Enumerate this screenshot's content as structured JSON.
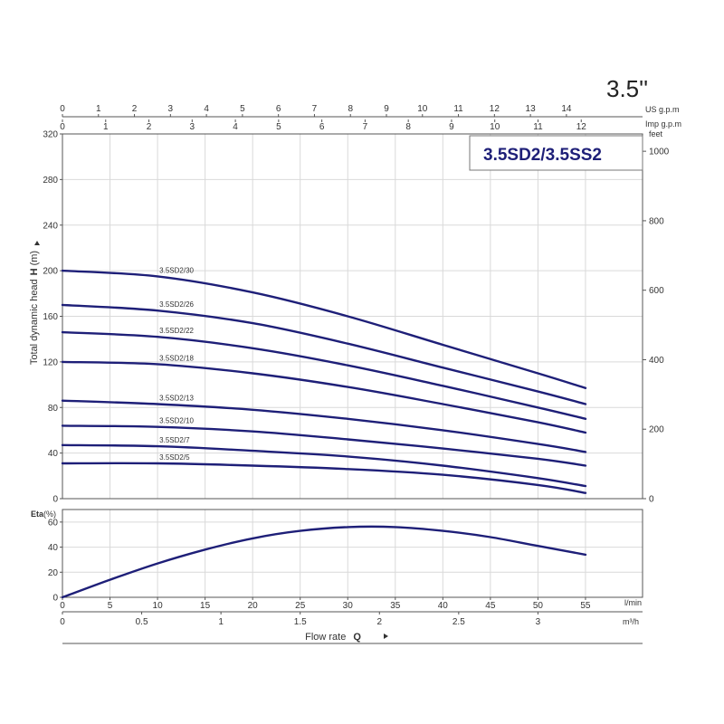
{
  "chart_data": {
    "type": "line",
    "size_label": "3.5''",
    "model_title": "3.5SD2/3.5SS2",
    "x_primary": {
      "label": "Flow rate",
      "symbol": "Q",
      "unit": "l/min",
      "range": [
        0,
        61
      ],
      "ticks": [
        "0",
        "5",
        "10",
        "15",
        "20",
        "25",
        "30",
        "35",
        "40",
        "45",
        "50",
        "55"
      ]
    },
    "x_m3h": {
      "unit": "m³/h",
      "ticks": [
        "0",
        "0.5",
        "1",
        "1.5",
        "2",
        "2.5",
        "3"
      ]
    },
    "x_us_gpm": {
      "unit": "US g.p.m",
      "ticks": [
        "0",
        "1",
        "2",
        "3",
        "4",
        "5",
        "6",
        "7",
        "8",
        "9",
        "10",
        "11",
        "12",
        "13",
        "14"
      ]
    },
    "x_imp_gpm": {
      "unit": "Imp g.p.m",
      "ticks": [
        "0",
        "1",
        "2",
        "3",
        "4",
        "5",
        "6",
        "7",
        "8",
        "9",
        "10",
        "11",
        "12"
      ]
    },
    "head": {
      "ylabel_prefix": "Total dynamic head",
      "ylabel_symbol": "H",
      "ylabel_unit": "(m)",
      "ylim": [
        0,
        320
      ],
      "ticks": [
        "0",
        "40",
        "80",
        "120",
        "160",
        "200",
        "240",
        "280",
        "320"
      ],
      "feet_unit": "feet",
      "feet_ticks": [
        "0",
        "200",
        "400",
        "600",
        "800",
        "1000"
      ],
      "series": [
        {
          "name": "3.5SD2/30",
          "x": [
            0,
            10,
            20,
            30,
            40,
            50,
            55
          ],
          "values": [
            200,
            195,
            181,
            160,
            135,
            110,
            97
          ]
        },
        {
          "name": "3.5SD2/26",
          "x": [
            0,
            10,
            20,
            30,
            40,
            50,
            55
          ],
          "values": [
            170,
            165,
            154,
            136,
            115,
            94,
            83
          ]
        },
        {
          "name": "3.5SD2/22",
          "x": [
            0,
            10,
            20,
            30,
            40,
            50,
            55
          ],
          "values": [
            146,
            142,
            132,
            117,
            99,
            80,
            70
          ]
        },
        {
          "name": "3.5SD2/18",
          "x": [
            0,
            10,
            20,
            30,
            40,
            50,
            55
          ],
          "values": [
            120,
            118,
            110,
            98,
            83,
            67,
            58
          ]
        },
        {
          "name": "3.5SD2/13",
          "x": [
            0,
            10,
            20,
            30,
            40,
            50,
            55
          ],
          "values": [
            86,
            83,
            78,
            70,
            60,
            48,
            41
          ]
        },
        {
          "name": "3.5SD2/10",
          "x": [
            0,
            10,
            20,
            30,
            40,
            50,
            55
          ],
          "values": [
            64,
            63,
            59,
            52,
            44,
            35,
            29
          ]
        },
        {
          "name": "3.5SD2/7",
          "x": [
            0,
            10,
            20,
            30,
            40,
            50,
            55
          ],
          "values": [
            47,
            46,
            42,
            37,
            29,
            18,
            11
          ]
        },
        {
          "name": "3.5SD2/5",
          "x": [
            0,
            10,
            20,
            30,
            40,
            50,
            55
          ],
          "values": [
            31,
            31,
            29,
            26,
            21,
            12,
            5
          ]
        }
      ]
    },
    "efficiency": {
      "ylabel": "Eta",
      "ylabel_unit": "(%)",
      "ylim": [
        0,
        70
      ],
      "ticks": [
        "0",
        "20",
        "40",
        "60"
      ],
      "x": [
        0,
        5,
        10,
        15,
        20,
        25,
        30,
        35,
        40,
        45,
        50,
        55
      ],
      "values": [
        0,
        14,
        27,
        38,
        47,
        53,
        56,
        56,
        53,
        48,
        41,
        34
      ]
    },
    "grid": true
  }
}
